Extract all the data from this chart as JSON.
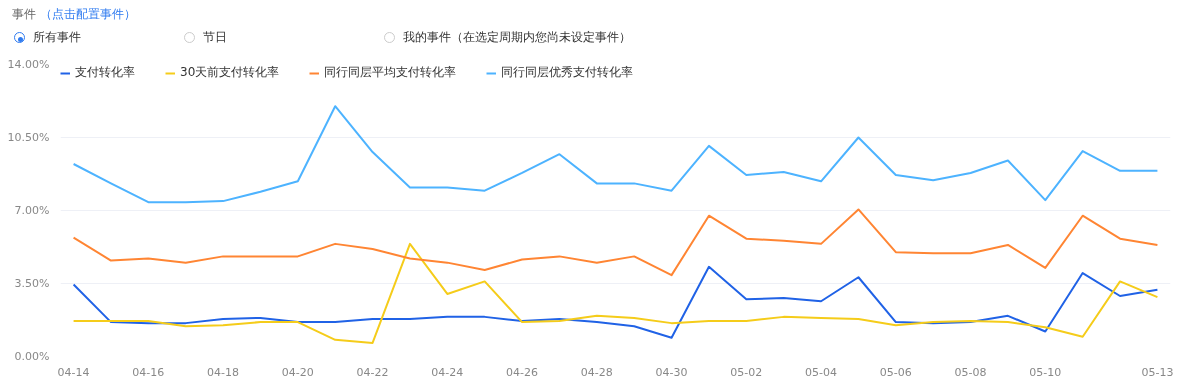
{
  "chart_data": {
    "type": "line",
    "annotations": [
      "事件",
      "（点击配置事件）",
      "所有事件",
      "节日",
      "我的事件（在选定周期内您尚未设定事件）"
    ],
    "categories": [
      "04-14",
      null,
      "04-16",
      null,
      "04-18",
      null,
      "04-20",
      null,
      "04-22",
      null,
      "04-24",
      null,
      "04-26",
      null,
      "04-28",
      null,
      "04-30",
      null,
      "05-02",
      null,
      "05-04",
      null,
      "05-06",
      null,
      "05-08",
      null,
      "05-10",
      null,
      null,
      "05-13"
    ],
    "series": [
      {
        "name": "支付转化率",
        "color": "#2062e6",
        "values": [
          3.45,
          1.65,
          1.6,
          1.6,
          1.8,
          1.85,
          1.65,
          1.65,
          1.8,
          1.8,
          1.9,
          1.9,
          1.7,
          1.8,
          1.65,
          1.45,
          0.9,
          4.3,
          2.75,
          2.8,
          2.65,
          3.8,
          1.65,
          1.6,
          1.65,
          1.95,
          1.2,
          4.0,
          2.9,
          3.2
        ]
      },
      {
        "name": "30天前支付转化率",
        "color": "#f5cc1a",
        "values": [
          1.7,
          1.7,
          1.7,
          1.45,
          1.5,
          1.65,
          1.65,
          0.8,
          0.65,
          5.4,
          3.0,
          3.6,
          1.65,
          1.7,
          1.95,
          1.85,
          1.6,
          1.7,
          1.7,
          1.9,
          1.85,
          1.8,
          1.5,
          1.65,
          1.7,
          1.65,
          1.4,
          0.95,
          3.6,
          2.85
        ]
      },
      {
        "name": "同行同层平均支付转化率",
        "color": "#ff8533",
        "values": [
          5.7,
          4.6,
          4.7,
          4.5,
          4.8,
          4.8,
          4.8,
          5.4,
          5.15,
          4.7,
          4.5,
          4.15,
          4.65,
          4.8,
          4.5,
          4.8,
          3.9,
          6.75,
          5.65,
          5.55,
          5.4,
          7.05,
          5.0,
          4.95,
          4.95,
          5.35,
          4.25,
          6.75,
          5.65,
          5.35
        ]
      },
      {
        "name": "同行同层优秀支付转化率",
        "color": "#4db3ff",
        "values": [
          9.23,
          8.3,
          7.4,
          7.4,
          7.45,
          7.9,
          8.4,
          12.0,
          9.8,
          8.1,
          8.1,
          7.95,
          8.8,
          9.7,
          8.3,
          8.3,
          7.95,
          10.1,
          8.7,
          8.85,
          8.4,
          10.5,
          8.7,
          8.45,
          8.8,
          9.4,
          7.5,
          9.85,
          8.9,
          8.9
        ]
      }
    ],
    "ylim": [
      0,
      14
    ],
    "yticks": [
      {
        "value": 0,
        "label": "0.00%"
      },
      {
        "value": 3.5,
        "label": "3.50%"
      },
      {
        "value": 7,
        "label": "7.00%"
      },
      {
        "value": 10.5,
        "label": "10.50%"
      },
      {
        "value": 14,
        "label": "14.00%"
      }
    ],
    "grid": "y",
    "legend": "top left",
    "marker": "none",
    "line_style": "solid"
  }
}
